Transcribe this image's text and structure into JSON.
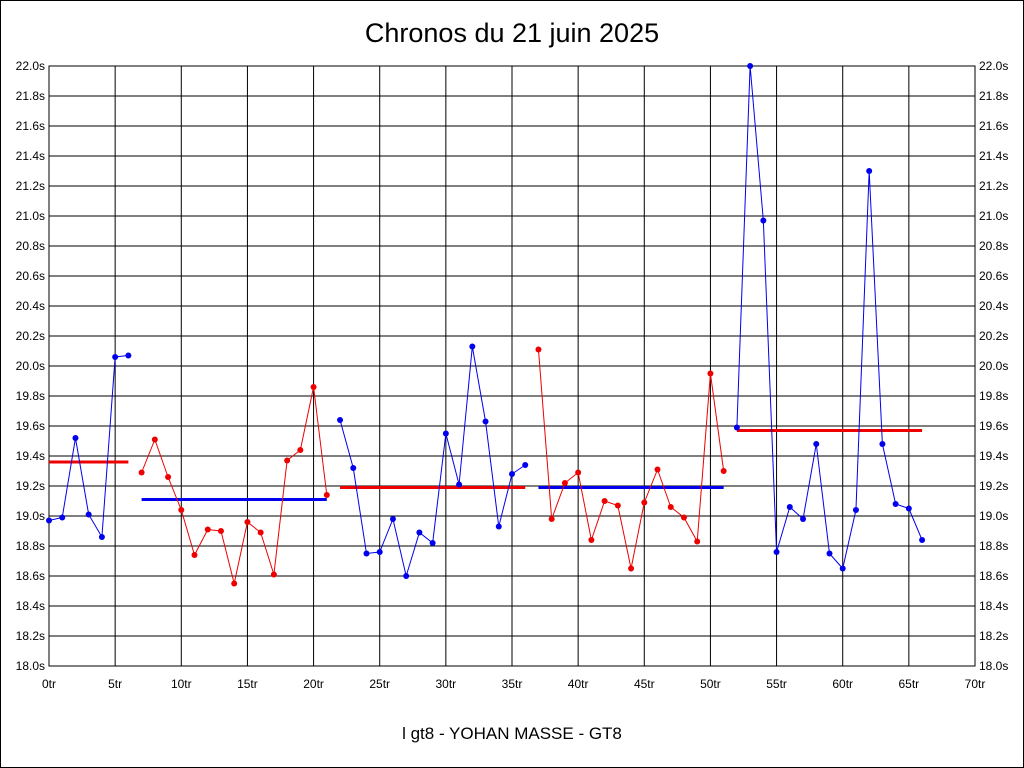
{
  "chart_data": {
    "type": "line",
    "title": "Chronos du 21 juin 2025",
    "subtitle": "l gt8 - YOHAN MASSE - GT8",
    "x_ticks": [
      "0tr",
      "5tr",
      "10tr",
      "15tr",
      "20tr",
      "25tr",
      "30tr",
      "35tr",
      "40tr",
      "45tr",
      "50tr",
      "55tr",
      "60tr",
      "65tr",
      "70tr"
    ],
    "x_tick_values": [
      0,
      5,
      10,
      15,
      20,
      25,
      30,
      35,
      40,
      45,
      50,
      55,
      60,
      65,
      70
    ],
    "y_ticks": [
      "18.0s",
      "18.2s",
      "18.4s",
      "18.6s",
      "18.8s",
      "19.0s",
      "19.2s",
      "19.4s",
      "19.6s",
      "19.8s",
      "20.0s",
      "20.2s",
      "20.4s",
      "20.6s",
      "20.8s",
      "21.0s",
      "21.2s",
      "21.4s",
      "21.6s",
      "21.8s",
      "22.0s"
    ],
    "y_tick_values": [
      18.0,
      18.2,
      18.4,
      18.6,
      18.8,
      19.0,
      19.2,
      19.4,
      19.6,
      19.8,
      20.0,
      20.2,
      20.4,
      20.6,
      20.8,
      21.0,
      21.2,
      21.4,
      21.6,
      21.8,
      22.0
    ],
    "xlim": [
      0,
      70
    ],
    "ylim": [
      18.0,
      22.0
    ],
    "grid": true,
    "series": [
      {
        "color": "#0000ee",
        "x": [
          0,
          1,
          2,
          3,
          4,
          5,
          6
        ],
        "y": [
          18.97,
          18.99,
          19.52,
          19.01,
          18.86,
          20.06,
          20.07
        ]
      },
      {
        "color": "#ee0000",
        "x": [
          7,
          8,
          9,
          10,
          11,
          12,
          13,
          14,
          15,
          16,
          17,
          18,
          19,
          20,
          21
        ],
        "y": [
          19.29,
          19.51,
          19.26,
          19.04,
          18.74,
          18.91,
          18.9,
          18.55,
          18.96,
          18.89,
          18.61,
          19.37,
          19.44,
          19.86,
          19.14
        ]
      },
      {
        "color": "#0000ee",
        "x": [
          22,
          23,
          24,
          25,
          26,
          27,
          28,
          29,
          30,
          31,
          32,
          33,
          34,
          35,
          36
        ],
        "y": [
          19.64,
          19.32,
          18.75,
          18.76,
          18.98,
          18.6,
          18.89,
          18.82,
          19.55,
          19.21,
          20.13,
          19.63,
          18.93,
          19.28,
          19.34
        ]
      },
      {
        "color": "#ee0000",
        "x": [
          37,
          38,
          39,
          40,
          41,
          42,
          43,
          44,
          45,
          46,
          47,
          48,
          49,
          50,
          51
        ],
        "y": [
          20.11,
          18.98,
          19.22,
          19.29,
          18.84,
          19.1,
          19.07,
          18.65,
          19.09,
          19.31,
          19.06,
          18.99,
          18.83,
          19.95,
          19.3
        ]
      },
      {
        "color": "#0000ee",
        "x": [
          52,
          53,
          54,
          55,
          56,
          57,
          58,
          59,
          60,
          61,
          62,
          63,
          64,
          65,
          66
        ],
        "y": [
          19.59,
          22.0,
          20.97,
          18.76,
          19.06,
          18.98,
          19.48,
          18.75,
          18.65,
          19.04,
          21.3,
          19.48,
          19.08,
          19.05,
          18.84
        ]
      }
    ],
    "averages": [
      {
        "color": "#ee0000",
        "x": [
          0,
          6
        ],
        "y": 19.36
      },
      {
        "color": "#0000ee",
        "x": [
          7,
          21
        ],
        "y": 19.11
      },
      {
        "color": "#ee0000",
        "x": [
          22,
          36
        ],
        "y": 19.19
      },
      {
        "color": "#0000ee",
        "x": [
          37,
          51
        ],
        "y": 19.19
      },
      {
        "color": "#ee0000",
        "x": [
          52,
          66
        ],
        "y": 19.57
      }
    ]
  }
}
